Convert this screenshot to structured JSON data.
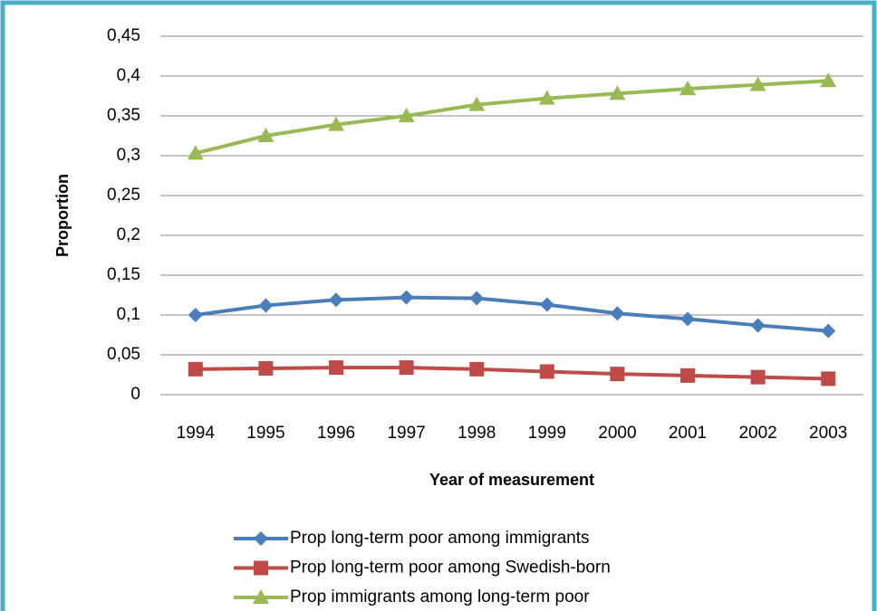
{
  "chart_data": {
    "type": "line",
    "x_label": "Year of measurement",
    "y_label": "Proportion",
    "categories": [
      "1994",
      "1995",
      "1996",
      "1997",
      "1998",
      "1999",
      "2000",
      "2001",
      "2002",
      "2003"
    ],
    "series": [
      {
        "name": "Prop long-term poor among immigrants",
        "color": "#4a7ebb",
        "marker": "diamond",
        "values": [
          0.1,
          0.112,
          0.119,
          0.122,
          0.121,
          0.113,
          0.102,
          0.095,
          0.087,
          0.08
        ]
      },
      {
        "name": "Prop long-term poor among Swedish-born",
        "color": "#be4b48",
        "marker": "square",
        "values": [
          0.032,
          0.033,
          0.034,
          0.034,
          0.032,
          0.029,
          0.026,
          0.024,
          0.022,
          0.02
        ]
      },
      {
        "name": "Prop immigrants among long-term poor",
        "color": "#98b954",
        "marker": "triangle",
        "values": [
          0.303,
          0.325,
          0.339,
          0.35,
          0.364,
          0.372,
          0.378,
          0.384,
          0.389,
          0.394
        ]
      }
    ],
    "ylim": [
      0,
      0.45
    ],
    "yticks": [
      0,
      {
        "value": 0.05,
        "label": "0,05"
      },
      {
        "value": 0.1,
        "label": "0,1"
      },
      {
        "value": 0.15,
        "label": "0,15"
      },
      {
        "value": 0.2,
        "label": "0,2"
      },
      {
        "value": 0.25,
        "label": "0,25"
      },
      {
        "value": 0.3,
        "label": "0,3"
      },
      {
        "value": 0.35,
        "label": "0,35"
      },
      {
        "value": 0.4,
        "label": "0,4"
      },
      {
        "value": 0.45,
        "label": "0,45"
      }
    ],
    "grid": true,
    "legend": "bottom"
  }
}
